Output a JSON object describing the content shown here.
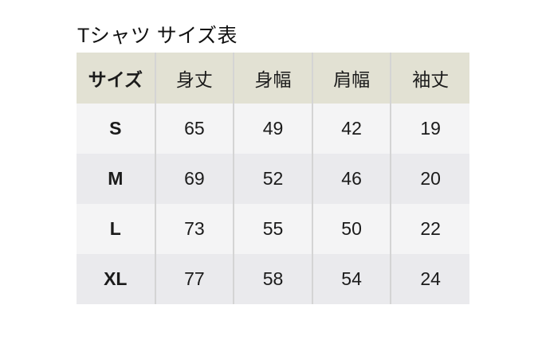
{
  "page": {
    "title": "Tシャツ サイズ表",
    "background": "#ffffff"
  },
  "table": {
    "columns": [
      "サイズ",
      "身丈",
      "身幅",
      "肩幅",
      "袖丈"
    ],
    "rows": [
      {
        "size": "S",
        "values": [
          65,
          49,
          42,
          19
        ]
      },
      {
        "size": "M",
        "values": [
          69,
          52,
          46,
          20
        ]
      },
      {
        "size": "L",
        "values": [
          73,
          55,
          50,
          22
        ]
      },
      {
        "size": "XL",
        "values": [
          77,
          58,
          54,
          24
        ]
      }
    ],
    "colors": {
      "header_bg": "#e2e1d3",
      "row_odd_bg": "#f4f4f5",
      "row_even_bg": "#eaeaed",
      "divider": "#d4d4d4",
      "text": "#1b1b1b"
    }
  }
}
